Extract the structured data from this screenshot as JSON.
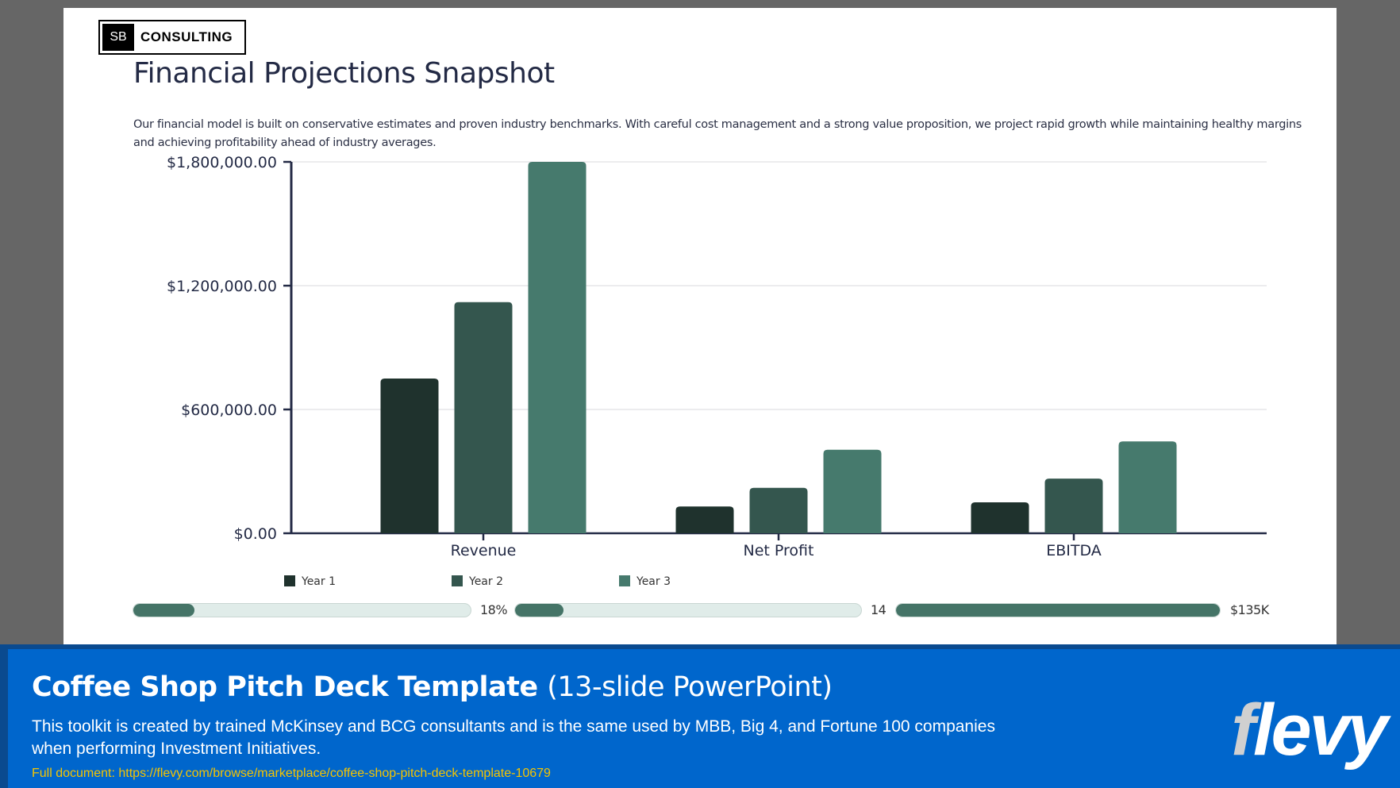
{
  "logo": {
    "mark": "SB",
    "name": "CONSULTING"
  },
  "slide": {
    "title": "Financial Projections Snapshot",
    "description": "Our financial model is built on conservative estimates and proven industry benchmarks. With careful cost management and a strong value proposition, we project rapid growth while maintaining healthy margins and achieving profitability ahead of industry averages."
  },
  "chart_data": {
    "type": "bar",
    "categories": [
      "Revenue",
      "Net Profit",
      "EBITDA"
    ],
    "series": [
      {
        "name": "Year 1",
        "values": [
          750000,
          130000,
          150000
        ],
        "color": "#1f322d"
      },
      {
        "name": "Year 2",
        "values": [
          1120000,
          220000,
          265000
        ],
        "color": "#34564e"
      },
      {
        "name": "Year 3",
        "values": [
          1800000,
          405000,
          445000
        ],
        "color": "#467a6d"
      }
    ],
    "yticks": [
      "$0.00",
      "$600,000.00",
      "$1,200,000.00",
      "$1,800,000.00"
    ],
    "ylim": [
      0,
      1800000
    ],
    "grid": true,
    "legend": "bottom-left"
  },
  "metrics": [
    {
      "value_label": "18%",
      "fill": 0.18
    },
    {
      "value_label": "14",
      "fill": 0.14
    },
    {
      "value_label": "$135K",
      "fill": 1.0
    }
  ],
  "banner": {
    "title": "Coffee Shop Pitch Deck Template",
    "subtitle": "(13-slide PowerPoint)",
    "description": "This toolkit is created by trained McKinsey and BCG consultants and is the same used by MBB, Big 4, and Fortune 100 companies when performing Investment Initiatives.",
    "link": "Full document: https://flevy.com/browse/marketplace/coffee-shop-pitch-deck-template-10679",
    "brand_f": "f",
    "brand_rest": "levy"
  }
}
